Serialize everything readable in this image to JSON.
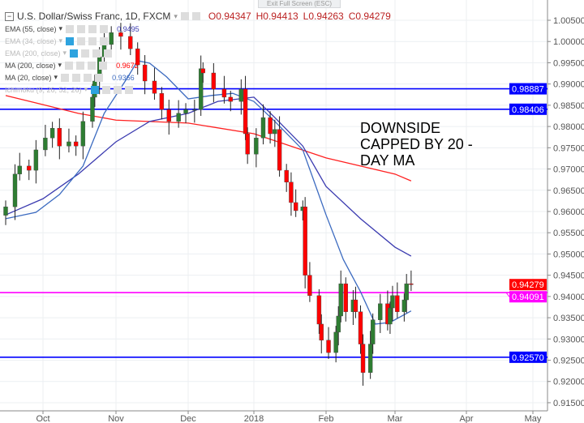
{
  "window": {
    "exit_fullscreen": "Exit Full Screen (ESC)"
  },
  "header": {
    "symbol": "U.S. Dollar/Swiss Franc, 1D, FXCM",
    "open": "O0.94347",
    "high": "H0.94413",
    "low": "L0.94263",
    "close": "C0.94279"
  },
  "indicators": [
    {
      "label": "EMA (55, close)",
      "value": "0.9495",
      "color": "#3b3bb0",
      "visible": true
    },
    {
      "label": "EMA (34, close)",
      "value": "",
      "visible": false
    },
    {
      "label": "EMA (200, close)",
      "value": "",
      "visible": false
    },
    {
      "label": "MA (200, close)",
      "value": "0.9672",
      "color": "#ff0000",
      "visible": true
    },
    {
      "label": "MA (20, close)",
      "value": "0.9366",
      "color": "#3c6bc0",
      "visible": true
    },
    {
      "label": "Ichimoku (9, 26, 52, 26)",
      "value": "",
      "visible": false
    }
  ],
  "annotation": "DOWNSIDE CAPPED BY 20 - DAY MA",
  "chart_data": {
    "type": "candlestick",
    "ylim": [
      0.913,
      1.008
    ],
    "y_ticks": [
      "1.00500",
      "1.00000",
      "0.99500",
      "0.99000",
      "0.98500",
      "0.98000",
      "0.97500",
      "0.97000",
      "0.96500",
      "0.96000",
      "0.95500",
      "0.95000",
      "0.94500",
      "0.94000",
      "0.93500",
      "0.93000",
      "0.92500",
      "0.92000",
      "0.91500"
    ],
    "x_ticks": [
      {
        "label": "Oct",
        "date": "2017-10-01"
      },
      {
        "label": "Nov",
        "date": "2017-11-01"
      },
      {
        "label": "Dec",
        "date": "2017-12-01"
      },
      {
        "label": "2018",
        "date": "2018-01-01"
      },
      {
        "label": "Feb",
        "date": "2018-02-01"
      },
      {
        "label": "Mar",
        "date": "2018-03-01"
      },
      {
        "label": "Apr",
        "date": "2018-04-01"
      },
      {
        "label": "May",
        "date": "2018-05-01"
      }
    ],
    "closes": [
      [
        "2017-09-15",
        0.9611
      ],
      [
        "2017-09-19",
        0.9688
      ],
      [
        "2017-09-21",
        0.9707
      ],
      [
        "2017-09-25",
        0.9697
      ],
      [
        "2017-09-28",
        0.9745
      ],
      [
        "2017-10-02",
        0.9773
      ],
      [
        "2017-10-05",
        0.9796
      ],
      [
        "2017-10-08",
        0.9754
      ],
      [
        "2017-10-12",
        0.9764
      ],
      [
        "2017-10-15",
        0.9754
      ],
      [
        "2017-10-18",
        0.9812
      ],
      [
        "2017-10-22",
        0.9869
      ],
      [
        "2017-10-23",
        0.9907
      ],
      [
        "2017-10-25",
        0.9964
      ],
      [
        "2017-10-27",
        0.9993
      ],
      [
        "2017-10-30",
        1.0021
      ],
      [
        "2017-11-03",
        1.0012
      ],
      [
        "2017-11-07",
        0.9983
      ],
      [
        "2017-11-10",
        0.9945
      ],
      [
        "2017-11-13",
        0.9907
      ],
      [
        "2017-11-17",
        0.9878
      ],
      [
        "2017-11-20",
        0.984
      ],
      [
        "2017-11-23",
        0.9812
      ],
      [
        "2017-11-27",
        0.9831
      ],
      [
        "2017-11-30",
        0.984
      ],
      [
        "2017-12-04",
        0.984
      ],
      [
        "2017-12-07",
        0.9936
      ],
      [
        "2017-12-08",
        0.9926
      ],
      [
        "2017-12-13",
        0.9888
      ],
      [
        "2017-12-18",
        0.9869
      ],
      [
        "2017-12-21",
        0.9859
      ],
      [
        "2017-12-26",
        0.9888
      ],
      [
        "2017-12-28",
        0.9783
      ],
      [
        "2017-12-29",
        0.9735
      ],
      [
        "2018-01-02",
        0.9773
      ],
      [
        "2018-01-05",
        0.9821
      ],
      [
        "2018-01-08",
        0.9783
      ],
      [
        "2018-01-10",
        0.9793
      ],
      [
        "2018-01-12",
        0.9697
      ],
      [
        "2018-01-15",
        0.9669
      ],
      [
        "2018-01-17",
        0.9621
      ],
      [
        "2018-01-19",
        0.9602
      ],
      [
        "2018-01-22",
        0.9611
      ],
      [
        "2018-01-23",
        0.945
      ],
      [
        "2018-01-25",
        0.9402
      ],
      [
        "2018-01-29",
        0.9335
      ],
      [
        "2018-01-30",
        0.9297
      ],
      [
        "2018-02-02",
        0.9268
      ],
      [
        "2018-02-05",
        0.9316
      ],
      [
        "2018-02-06",
        0.9354
      ],
      [
        "2018-02-07",
        0.943
      ],
      [
        "2018-02-09",
        0.9364
      ],
      [
        "2018-02-12",
        0.9392
      ],
      [
        "2018-02-13",
        0.9364
      ],
      [
        "2018-02-15",
        0.9288
      ],
      [
        "2018-02-16",
        0.9221
      ],
      [
        "2018-02-19",
        0.9288
      ],
      [
        "2018-02-20",
        0.9345
      ],
      [
        "2018-02-23",
        0.9383
      ],
      [
        "2018-02-26",
        0.9335
      ],
      [
        "2018-02-27",
        0.9373
      ],
      [
        "2018-02-28",
        0.9402
      ],
      [
        "2018-03-02",
        0.9364
      ],
      [
        "2018-03-05",
        0.9392
      ],
      [
        "2018-03-06",
        0.943
      ],
      [
        "2018-03-08",
        0.94279
      ]
    ],
    "ma200": [
      [
        "2017-09-15",
        0.9873
      ],
      [
        "2017-10-16",
        0.9831
      ],
      [
        "2017-11-01",
        0.9815
      ],
      [
        "2017-12-01",
        0.9808
      ],
      [
        "2018-01-01",
        0.9783
      ],
      [
        "2018-02-01",
        0.9726
      ],
      [
        "2018-03-01",
        0.9688
      ],
      [
        "2018-03-08",
        0.9672
      ]
    ],
    "ema55": [
      [
        "2017-09-15",
        0.9592
      ],
      [
        "2017-10-01",
        0.963
      ],
      [
        "2017-10-16",
        0.9688
      ],
      [
        "2017-11-01",
        0.9764
      ],
      [
        "2017-11-15",
        0.9812
      ],
      [
        "2017-12-01",
        0.9831
      ],
      [
        "2017-12-15",
        0.9859
      ],
      [
        "2018-01-01",
        0.9869
      ],
      [
        "2018-01-10",
        0.9821
      ],
      [
        "2018-01-22",
        0.9754
      ],
      [
        "2018-02-01",
        0.9659
      ],
      [
        "2018-02-15",
        0.9583
      ],
      [
        "2018-03-01",
        0.9516
      ],
      [
        "2018-03-08",
        0.9495
      ]
    ],
    "ma20": [
      [
        "2017-09-15",
        0.9583
      ],
      [
        "2017-09-28",
        0.9598
      ],
      [
        "2017-10-08",
        0.964
      ],
      [
        "2017-10-18",
        0.9707
      ],
      [
        "2017-10-27",
        0.9831
      ],
      [
        "2017-11-06",
        0.9917
      ],
      [
        "2017-11-10",
        0.9955
      ],
      [
        "2017-11-15",
        0.9949
      ],
      [
        "2017-11-22",
        0.9917
      ],
      [
        "2017-12-01",
        0.9865
      ],
      [
        "2017-12-12",
        0.9873
      ],
      [
        "2017-12-22",
        0.9878
      ],
      [
        "2018-01-01",
        0.9859
      ],
      [
        "2018-01-10",
        0.9812
      ],
      [
        "2018-01-22",
        0.9745
      ],
      [
        "2018-02-01",
        0.9592
      ],
      [
        "2018-02-08",
        0.9487
      ],
      [
        "2018-02-15",
        0.9411
      ],
      [
        "2018-02-21",
        0.9335
      ],
      [
        "2018-02-27",
        0.9339
      ],
      [
        "2018-03-08",
        0.9366
      ]
    ],
    "hlines": [
      {
        "price": 0.98887,
        "label": "0.98887",
        "color": "#0000ff"
      },
      {
        "price": 0.98406,
        "label": "0.98406",
        "color": "#0000ff"
      },
      {
        "price": 0.94091,
        "label": "0.94091",
        "color": "#ff00ff"
      },
      {
        "price": 0.9257,
        "label": "0.92570",
        "color": "#0000ff"
      }
    ],
    "last_price": {
      "price": 0.94279,
      "label": "0.94279",
      "color": "#ff0000"
    },
    "up_color": "#2e7d32",
    "down_color": "#ff0000",
    "grid": true
  }
}
